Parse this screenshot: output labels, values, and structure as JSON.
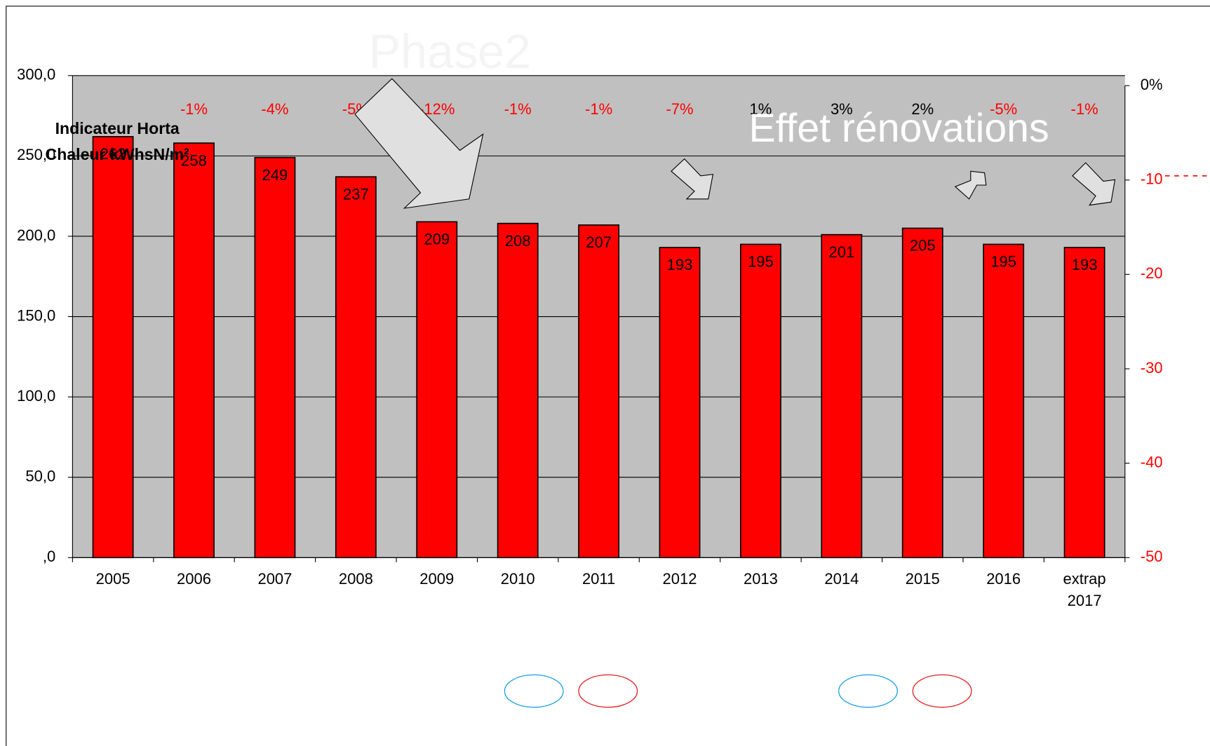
{
  "chart_data": {
    "type": "bar",
    "title": "Indicateur Horta Chaleur kWhsN/m²",
    "categories": [
      "2005",
      "2006",
      "2007",
      "2008",
      "2009",
      "2010",
      "2011",
      "2012",
      "2013",
      "2014",
      "2015",
      "2016",
      "extrap 2017"
    ],
    "values": [
      262,
      258,
      249,
      237,
      209,
      208,
      207,
      193,
      195,
      201,
      205,
      195,
      193
    ],
    "color": "#ff0000",
    "change_labels": [
      null,
      "-1%",
      "-4%",
      "-5%",
      "-12%",
      "-1%",
      "-1%",
      "-7%",
      "1%",
      "3%",
      "2%",
      "-5%",
      "-1%"
    ],
    "annotations": [
      "Phase2",
      "Effet rénovations"
    ],
    "ylim": [
      0,
      300
    ],
    "yticks": [
      {
        "value": 0,
        "label": ",0"
      },
      {
        "value": 50,
        "label": "50,0"
      },
      {
        "value": 100,
        "label": "100,0"
      },
      {
        "value": 150,
        "label": "150,0"
      },
      {
        "value": 200,
        "label": "200,0"
      },
      {
        "value": 250,
        "label": "250,0"
      },
      {
        "value": 300,
        "label": "300,0"
      }
    ],
    "y2lim": [
      -50,
      0
    ],
    "y2ticks": [
      {
        "value": 0,
        "label": "0%"
      },
      {
        "value": -10,
        "label": "-10%"
      },
      {
        "value": -20,
        "label": "-20%"
      },
      {
        "value": -30,
        "label": "-30%"
      },
      {
        "value": -40,
        "label": "-40%"
      },
      {
        "value": -50,
        "label": "-50%"
      }
    ],
    "grid": true
  }
}
